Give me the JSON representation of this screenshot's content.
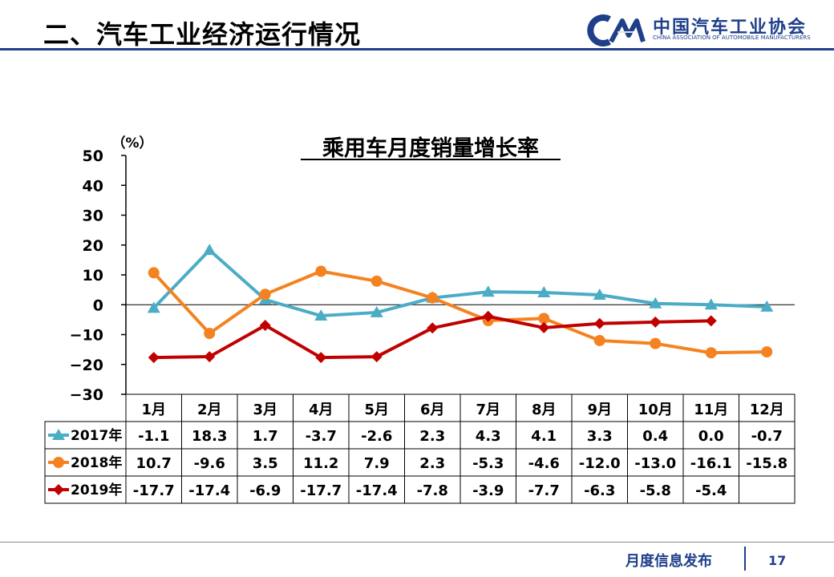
{
  "header": {
    "title": "二、汽车工业经济运行情况"
  },
  "logo": {
    "name_cn": "中国汽车工业协会",
    "name_en": "CHINA ASSOCIATION OF AUTOMOBILE MANUFACTURERS"
  },
  "footer": {
    "text": "月度信息发布",
    "page": "17"
  },
  "colors": {
    "2017": "#4bacc6",
    "2018": "#f58220",
    "2019": "#c00000",
    "header_rule": "#1f3f8a"
  },
  "chart_data": {
    "type": "line",
    "title": "乘用车月度销量增长率",
    "ylabel": "（%）",
    "xlabel": "",
    "ylim": [
      -30,
      50
    ],
    "yticks": [
      50,
      40,
      30,
      20,
      10,
      0,
      -10,
      -20,
      -30
    ],
    "ytick_labels": [
      "50",
      "40",
      "30",
      "20",
      "10",
      "0",
      "−10",
      "−20",
      "−30"
    ],
    "grid": false,
    "legend": "left-table",
    "categories": [
      "1月",
      "2月",
      "3月",
      "4月",
      "5月",
      "6月",
      "7月",
      "8月",
      "9月",
      "10月",
      "11月",
      "12月"
    ],
    "series": [
      {
        "name": "2017年",
        "marker": "triangle",
        "values": [
          -1.1,
          18.3,
          1.7,
          -3.7,
          -2.6,
          2.3,
          4.3,
          4.1,
          3.3,
          0.4,
          0.0,
          -0.7
        ],
        "labels": [
          "-1.1",
          "18.3",
          "1.7",
          "-3.7",
          "-2.6",
          "2.3",
          "4.3",
          "4.1",
          "3.3",
          "0.4",
          "0.0",
          "-0.7"
        ]
      },
      {
        "name": "2018年",
        "marker": "circle",
        "values": [
          10.7,
          -9.6,
          3.5,
          11.2,
          7.9,
          2.3,
          -5.3,
          -4.6,
          -12.0,
          -13.0,
          -16.1,
          -15.8
        ],
        "labels": [
          "10.7",
          "-9.6",
          "3.5",
          "11.2",
          "7.9",
          "2.3",
          "-5.3",
          "-4.6",
          "-12.0",
          "-13.0",
          "-16.1",
          "-15.8"
        ]
      },
      {
        "name": "2019年",
        "marker": "diamond",
        "values": [
          -17.7,
          -17.4,
          -6.9,
          -17.7,
          -17.4,
          -7.8,
          -3.9,
          -7.7,
          -6.3,
          -5.8,
          -5.4,
          null
        ],
        "labels": [
          "-17.7",
          "-17.4",
          "-6.9",
          "-17.7",
          "-17.4",
          "-7.8",
          "-3.9",
          "-7.7",
          "-6.3",
          "-5.8",
          "-5.4",
          ""
        ]
      }
    ]
  }
}
